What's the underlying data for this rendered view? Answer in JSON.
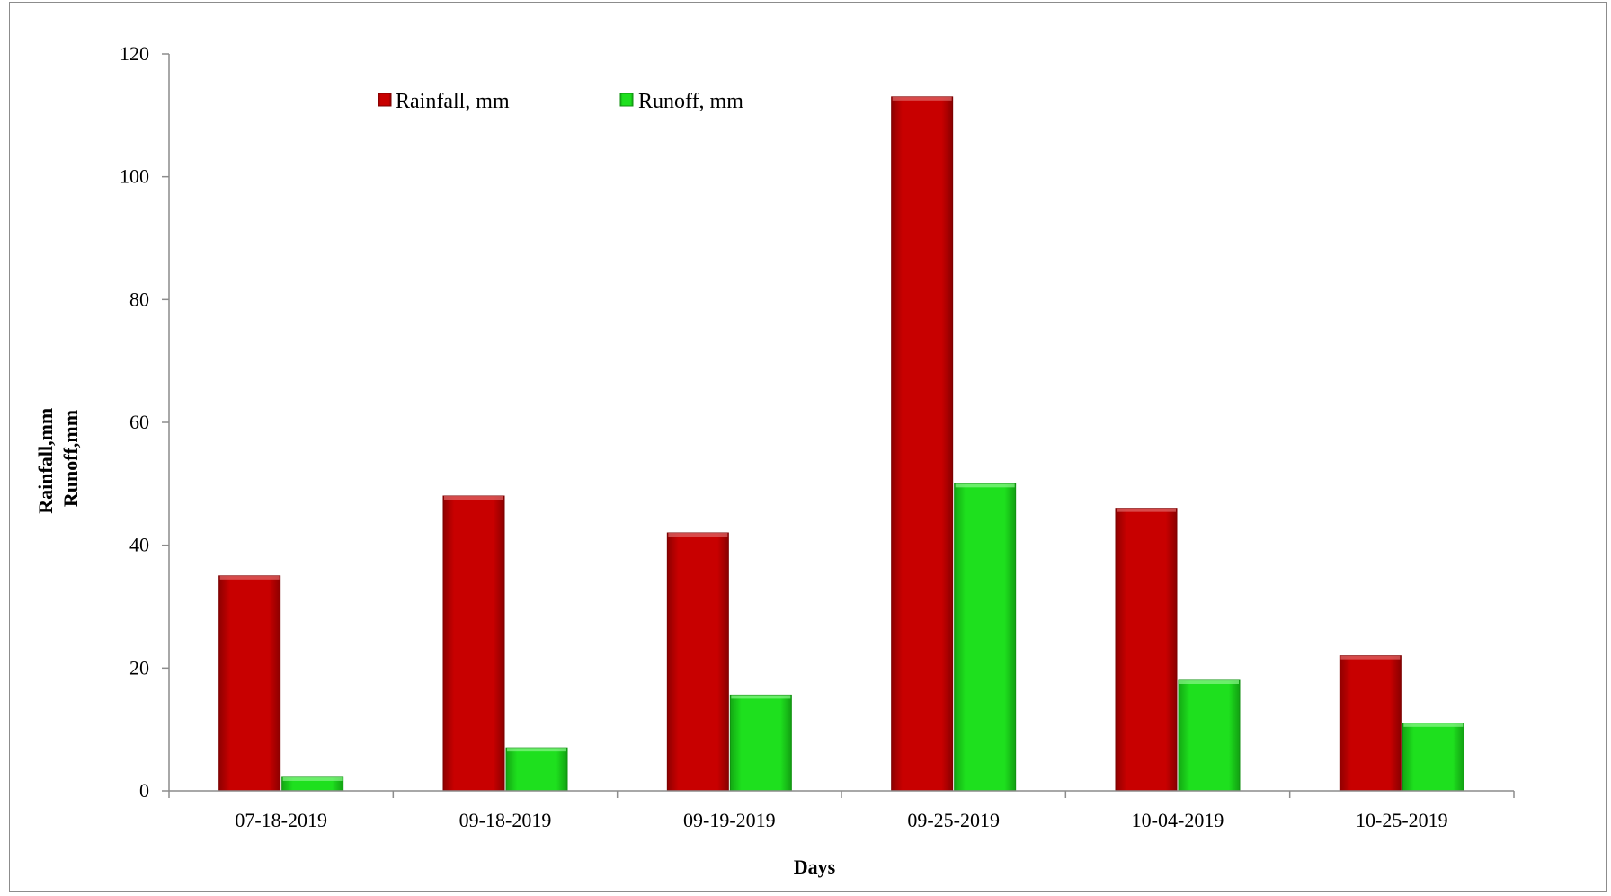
{
  "chart_data": {
    "type": "bar",
    "title": "",
    "xlabel": "Days",
    "ylabel": [
      "Rainfall,mm",
      "Runoff,mm"
    ],
    "categories": [
      "07-18-2019",
      "09-18-2019",
      "09-19-2019",
      "09-25-2019",
      "10-04-2019",
      "10-25-2019"
    ],
    "series": [
      {
        "name": "Rainfall, mm",
        "color": "#c80000",
        "values": [
          35,
          48,
          42,
          113,
          46,
          22
        ]
      },
      {
        "name": "Runoff, mm",
        "color": "#1ee01e",
        "values": [
          2.2,
          7,
          15.6,
          50,
          18,
          11
        ]
      }
    ],
    "ylim": [
      0,
      120
    ],
    "yticks": [
      0,
      20,
      40,
      60,
      80,
      100,
      120
    ],
    "grid": false,
    "legend_position": "top"
  }
}
